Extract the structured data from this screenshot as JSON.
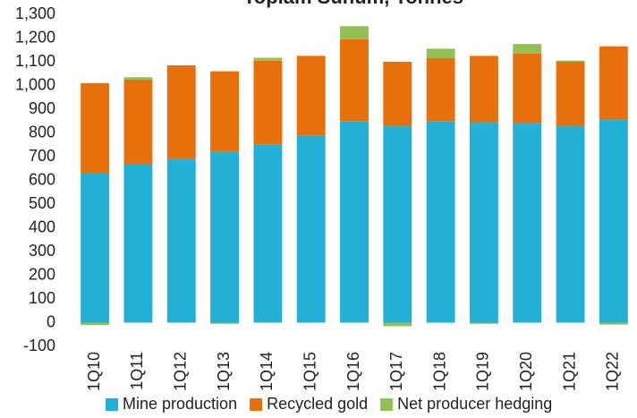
{
  "chart_data": {
    "type": "stacked_bar",
    "title": "Toplam Sunum, Tonnes",
    "categories": [
      "1Q10",
      "1Q11",
      "1Q12",
      "1Q13",
      "1Q14",
      "1Q15",
      "1Q16",
      "1Q17",
      "1Q18",
      "1Q19",
      "1Q20",
      "1Q21",
      "1Q22"
    ],
    "series": [
      {
        "name": "Mine production",
        "color": "#23b0d6",
        "values": [
          630,
          670,
          690,
          720,
          750,
          790,
          850,
          830,
          850,
          845,
          840,
          830,
          855
        ]
      },
      {
        "name": "Recycled gold",
        "color": "#e8700c",
        "values": [
          380,
          355,
          395,
          340,
          355,
          335,
          345,
          270,
          265,
          280,
          295,
          270,
          310
        ]
      },
      {
        "name": "Net producer hedging",
        "color": "#93c055",
        "values": [
          -10,
          10,
          0,
          -5,
          12,
          0,
          55,
          -15,
          40,
          -5,
          40,
          5,
          -8
        ]
      }
    ],
    "ylim": [
      -100,
      1300
    ],
    "yticks": [
      {
        "value": 1300,
        "label": "1,300"
      },
      {
        "value": 1200,
        "label": "1,200"
      },
      {
        "value": 1100,
        "label": "1,100"
      },
      {
        "value": 1000,
        "label": "1,000"
      },
      900,
      800,
      700,
      600,
      500,
      400,
      300,
      200,
      100,
      0,
      -100
    ],
    "grid": false,
    "legend": "bottom"
  }
}
